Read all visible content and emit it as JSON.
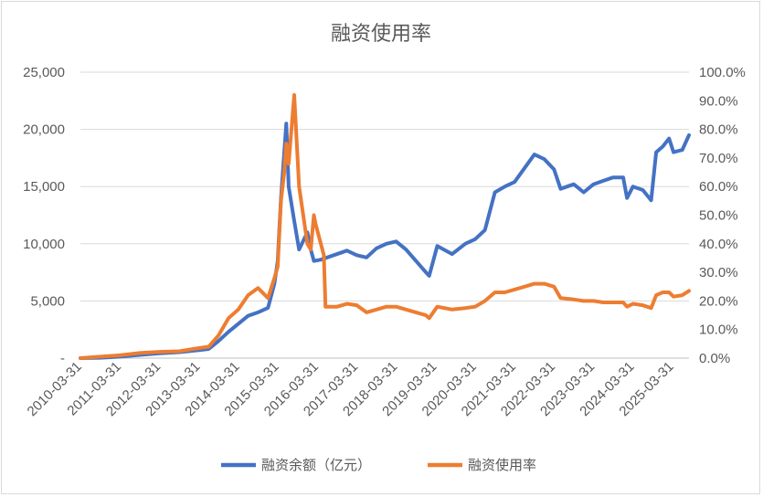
{
  "chart_data": {
    "type": "line",
    "title": "融资使用率",
    "x_ticks": [
      "2010-03-31",
      "2011-03-31",
      "2012-03-31",
      "2013-03-31",
      "2014-03-31",
      "2015-03-31",
      "2016-03-31",
      "2017-03-31",
      "2018-03-31",
      "2019-03-31",
      "2020-03-31",
      "2021-03-31",
      "2022-03-31",
      "2023-03-31",
      "2024-03-31",
      "2025-03-31"
    ],
    "y_left": {
      "ticks": [
        "-",
        "5,000",
        "10,000",
        "15,000",
        "20,000",
        "25,000"
      ],
      "range": [
        0,
        25000
      ]
    },
    "y_right": {
      "ticks": [
        "0.0%",
        "10.0%",
        "20.0%",
        "30.0%",
        "40.0%",
        "50.0%",
        "60.0%",
        "70.0%",
        "80.0%",
        "90.0%",
        "100.0%"
      ],
      "range": [
        0,
        100
      ]
    },
    "x_range": [
      "2010-03-31",
      "2025-08-31"
    ],
    "grid": true,
    "legend_position": "bottom",
    "series": [
      {
        "name": "融资余额（亿元）",
        "axis": "left",
        "color": "#4472C4",
        "points": [
          [
            "2010-03-31",
            0
          ],
          [
            "2010-09-30",
            30
          ],
          [
            "2011-03-31",
            130
          ],
          [
            "2011-09-30",
            280
          ],
          [
            "2012-03-31",
            420
          ],
          [
            "2012-09-30",
            520
          ],
          [
            "2013-03-31",
            700
          ],
          [
            "2013-06-30",
            800
          ],
          [
            "2013-09-30",
            1500
          ],
          [
            "2013-12-31",
            2300
          ],
          [
            "2014-03-31",
            3000
          ],
          [
            "2014-06-30",
            3700
          ],
          [
            "2014-09-30",
            4000
          ],
          [
            "2014-12-31",
            4400
          ],
          [
            "2015-02-28",
            6500
          ],
          [
            "2015-03-31",
            8500
          ],
          [
            "2015-04-30",
            14000
          ],
          [
            "2015-05-31",
            18000
          ],
          [
            "2015-06-18",
            20500
          ],
          [
            "2015-07-10",
            15000
          ],
          [
            "2015-08-31",
            12000
          ],
          [
            "2015-10-15",
            9500
          ],
          [
            "2015-12-31",
            11000
          ],
          [
            "2016-01-31",
            9500
          ],
          [
            "2016-02-29",
            8500
          ],
          [
            "2016-04-30",
            8600
          ],
          [
            "2016-08-31",
            9000
          ],
          [
            "2016-12-31",
            9400
          ],
          [
            "2017-03-31",
            9000
          ],
          [
            "2017-06-30",
            8800
          ],
          [
            "2017-09-30",
            9600
          ],
          [
            "2017-12-31",
            10000
          ],
          [
            "2018-03-31",
            10200
          ],
          [
            "2018-06-30",
            9500
          ],
          [
            "2018-09-30",
            8500
          ],
          [
            "2018-12-31",
            7500
          ],
          [
            "2019-01-31",
            7200
          ],
          [
            "2019-04-15",
            9800
          ],
          [
            "2019-08-31",
            9100
          ],
          [
            "2019-12-31",
            10000
          ],
          [
            "2020-03-31",
            10400
          ],
          [
            "2020-06-30",
            11200
          ],
          [
            "2020-09-30",
            14500
          ],
          [
            "2020-12-31",
            15000
          ],
          [
            "2021-03-31",
            15400
          ],
          [
            "2021-06-30",
            16600
          ],
          [
            "2021-09-30",
            17800
          ],
          [
            "2021-12-31",
            17400
          ],
          [
            "2022-03-31",
            16500
          ],
          [
            "2022-05-31",
            14800
          ],
          [
            "2022-09-30",
            15200
          ],
          [
            "2022-12-31",
            14500
          ],
          [
            "2023-03-31",
            15200
          ],
          [
            "2023-06-30",
            15500
          ],
          [
            "2023-09-30",
            15800
          ],
          [
            "2023-12-31",
            15800
          ],
          [
            "2024-02-05",
            14000
          ],
          [
            "2024-03-31",
            15000
          ],
          [
            "2024-06-30",
            14700
          ],
          [
            "2024-09-15",
            13800
          ],
          [
            "2024-10-31",
            18000
          ],
          [
            "2024-12-31",
            18500
          ],
          [
            "2025-02-28",
            19200
          ],
          [
            "2025-04-10",
            18000
          ],
          [
            "2025-06-30",
            18200
          ],
          [
            "2025-08-31",
            19500
          ]
        ]
      },
      {
        "name": "融资使用率",
        "axis": "right",
        "color": "#ED7D31",
        "points": [
          [
            "2010-03-31",
            0
          ],
          [
            "2010-09-30",
            0.5
          ],
          [
            "2011-03-31",
            1
          ],
          [
            "2011-09-30",
            1.8
          ],
          [
            "2012-03-31",
            2.2
          ],
          [
            "2012-09-30",
            2.4
          ],
          [
            "2013-03-31",
            3.5
          ],
          [
            "2013-06-30",
            4
          ],
          [
            "2013-09-30",
            8
          ],
          [
            "2013-12-31",
            14
          ],
          [
            "2014-03-31",
            17
          ],
          [
            "2014-06-30",
            22
          ],
          [
            "2014-09-30",
            24.5
          ],
          [
            "2014-12-31",
            21
          ],
          [
            "2015-02-28",
            28
          ],
          [
            "2015-03-31",
            32
          ],
          [
            "2015-04-30",
            55
          ],
          [
            "2015-05-31",
            65
          ],
          [
            "2015-06-18",
            75
          ],
          [
            "2015-07-10",
            68
          ],
          [
            "2015-08-31",
            92
          ],
          [
            "2015-10-15",
            60
          ],
          [
            "2015-12-31",
            40
          ],
          [
            "2016-01-31",
            38
          ],
          [
            "2016-02-29",
            50
          ],
          [
            "2016-03-15",
            47
          ],
          [
            "2016-05-31",
            36
          ],
          [
            "2016-06-15",
            18
          ],
          [
            "2016-09-30",
            18
          ],
          [
            "2016-12-31",
            19
          ],
          [
            "2017-03-31",
            18.5
          ],
          [
            "2017-06-30",
            16
          ],
          [
            "2017-09-30",
            17
          ],
          [
            "2017-12-31",
            18
          ],
          [
            "2018-03-31",
            18
          ],
          [
            "2018-06-30",
            17
          ],
          [
            "2018-09-30",
            16
          ],
          [
            "2018-12-31",
            15
          ],
          [
            "2019-01-31",
            14
          ],
          [
            "2019-04-15",
            18
          ],
          [
            "2019-08-31",
            17
          ],
          [
            "2019-12-31",
            17.5
          ],
          [
            "2020-03-31",
            18
          ],
          [
            "2020-06-30",
            20
          ],
          [
            "2020-09-30",
            23
          ],
          [
            "2020-12-31",
            23
          ],
          [
            "2021-03-31",
            24
          ],
          [
            "2021-06-30",
            25
          ],
          [
            "2021-09-30",
            26
          ],
          [
            "2021-12-31",
            26
          ],
          [
            "2022-03-31",
            25
          ],
          [
            "2022-05-31",
            21
          ],
          [
            "2022-09-30",
            20.5
          ],
          [
            "2022-12-31",
            20
          ],
          [
            "2023-03-31",
            20
          ],
          [
            "2023-06-30",
            19.5
          ],
          [
            "2023-09-30",
            19.5
          ],
          [
            "2023-12-31",
            19.5
          ],
          [
            "2024-02-05",
            18
          ],
          [
            "2024-03-31",
            19
          ],
          [
            "2024-06-30",
            18.5
          ],
          [
            "2024-09-15",
            17.5
          ],
          [
            "2024-10-31",
            22
          ],
          [
            "2024-12-31",
            23
          ],
          [
            "2025-02-28",
            23
          ],
          [
            "2025-04-10",
            21.5
          ],
          [
            "2025-06-30",
            22
          ],
          [
            "2025-08-31",
            23.5
          ]
        ]
      }
    ]
  }
}
